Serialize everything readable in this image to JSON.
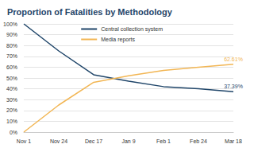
{
  "chart_data": {
    "type": "line",
    "title": "Proportion of Fatalities by Methodology",
    "categories": [
      "Nov 1",
      "Nov 24",
      "Dec 17",
      "Jan 9",
      "Feb 1",
      "Feb 24",
      "Mar 18"
    ],
    "series": [
      {
        "name": "Central collection system",
        "color": "#1f4569",
        "values": [
          100,
          75,
          53,
          47,
          42,
          40,
          37.39
        ],
        "value_labels": [
          null,
          null,
          null,
          null,
          null,
          null,
          "37.39%"
        ]
      },
      {
        "name": "Media reports",
        "color": "#f2b654",
        "values": [
          0,
          25,
          46,
          52,
          57,
          60,
          62.61
        ],
        "value_labels": [
          null,
          null,
          null,
          null,
          null,
          null,
          "62.61%"
        ]
      }
    ],
    "ylim": [
      0,
      100
    ],
    "yticks": [
      {
        "value": 0,
        "label": "0%"
      },
      {
        "value": 10,
        "label": "10%"
      },
      {
        "value": 20,
        "label": "20%"
      },
      {
        "value": 30,
        "label": "30%"
      },
      {
        "value": 40,
        "label": "40%"
      },
      {
        "value": 50,
        "label": "50%"
      },
      {
        "value": 60,
        "label": "60%"
      },
      {
        "value": 70,
        "label": "70%"
      },
      {
        "value": 80,
        "label": "80%"
      },
      {
        "value": 90,
        "label": "90%"
      },
      {
        "value": 100,
        "label": "100%"
      }
    ],
    "grid": true,
    "legend": "upper right",
    "data_labels": true
  }
}
